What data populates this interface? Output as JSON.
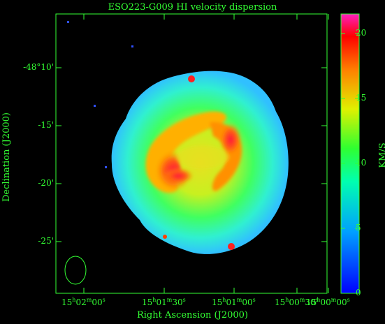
{
  "title": "ESO223-G009  HI velocity dispersion",
  "xaxis": {
    "label": "Right Ascension (J2000)",
    "ticks": [
      {
        "h": "15",
        "m": "02",
        "s": "00"
      },
      {
        "h": "15",
        "m": "01",
        "s": "30"
      },
      {
        "h": "15",
        "m": "01",
        "s": "00"
      },
      {
        "h": "15",
        "m": "00",
        "s": "30"
      },
      {
        "h": "15",
        "m": "00",
        "s": "00"
      }
    ]
  },
  "yaxis": {
    "label": "Declination (J2000)",
    "ticks": [
      "-48°10'",
      "-15'",
      "-20'",
      "-25'"
    ]
  },
  "colorbar": {
    "label": "KM/S",
    "ticks": [
      "20",
      "15",
      "10",
      "5",
      "0"
    ],
    "min": 0,
    "max": 21.5
  },
  "colors": {
    "axis": "#33ff33",
    "background": "#000000"
  }
}
